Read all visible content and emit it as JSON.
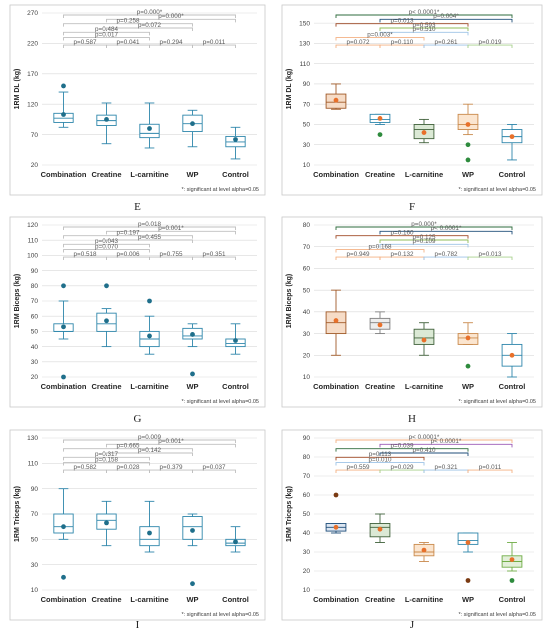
{
  "note": "*: significant at level alpha=0.05",
  "chart_data": [
    {
      "label": "E",
      "type": "box",
      "ylabel": "1RM DL (kg)",
      "ylim": [
        20,
        270
      ],
      "yticks": [
        20,
        70,
        120,
        170,
        220,
        270
      ],
      "categories": [
        "Combination",
        "Creatine",
        "L-carnitine",
        "WP",
        "Control"
      ],
      "boxes": [
        {
          "min": 82,
          "q1": 90,
          "median": 97,
          "q3": 105,
          "max": 140,
          "mean": 103,
          "outliers": [
            150
          ]
        },
        {
          "min": 55,
          "q1": 85,
          "median": 93,
          "q3": 102,
          "max": 122,
          "mean": 95,
          "outliers": []
        },
        {
          "min": 48,
          "q1": 65,
          "median": 72,
          "q3": 87,
          "max": 122,
          "mean": 80,
          "outliers": []
        },
        {
          "min": 50,
          "q1": 75,
          "median": 88,
          "q3": 102,
          "max": 110,
          "mean": 88,
          "outliers": []
        },
        {
          "min": 30,
          "q1": 50,
          "median": 58,
          "q3": 67,
          "max": 82,
          "mean": 62,
          "outliers": []
        }
      ],
      "comparisons": [
        {
          "a": 0,
          "b": 4,
          "text": "p=0.000*",
          "color": "#bfbfbf"
        },
        {
          "a": 1,
          "b": 4,
          "text": "p=0.000*",
          "color": "#bfbfbf"
        },
        {
          "a": 0,
          "b": 3,
          "text": "p=0.258",
          "color": "#bfbfbf"
        },
        {
          "a": 1,
          "b": 3,
          "text": "p=0.072",
          "color": "#bfbfbf"
        },
        {
          "a": 0,
          "b": 2,
          "text": "p=0.484",
          "color": "#bfbfbf"
        },
        {
          "a": 0,
          "b": 2,
          "text": "p=0.017",
          "color": "#bfbfbf"
        },
        {
          "a": 0,
          "b": 1,
          "text": "p=0.587",
          "color": "#bfbfbf"
        },
        {
          "a": 1,
          "b": 2,
          "text": "p=0.041",
          "color": "#bfbfbf"
        },
        {
          "a": 2,
          "b": 3,
          "text": "p=0.294",
          "color": "#bfbfbf"
        },
        {
          "a": 3,
          "b": 4,
          "text": "p=0.011",
          "color": "#bfbfbf"
        }
      ]
    },
    {
      "label": "F",
      "type": "box",
      "ylabel": "1RM DL (kg)",
      "ylim": [
        10,
        160
      ],
      "yticks": [
        10,
        30,
        50,
        70,
        90,
        110,
        130,
        150
      ],
      "categories": [
        "Combination",
        "Creatine",
        "L-carnitine",
        "WP",
        "Control"
      ],
      "boxes": [
        {
          "min": 65,
          "q1": 66,
          "median": 72,
          "q3": 80,
          "max": 90,
          "mean": 74,
          "outliers": [],
          "fill": "#f6dcc7",
          "stroke": "#a05a28",
          "meancolor": "#e8702a"
        },
        {
          "min": 50,
          "q1": 52,
          "median": 55,
          "q3": 60,
          "max": 60,
          "mean": 56,
          "outliers": [
            40
          ],
          "outliercolor": "#2e8b3d",
          "meancolor": "#e8702a"
        },
        {
          "min": 32,
          "q1": 36,
          "median": 45,
          "q3": 50,
          "max": 55,
          "mean": 42,
          "outliers": [],
          "fill": "#dbe9d5",
          "stroke": "#40613b",
          "meancolor": "#e8702a"
        },
        {
          "min": 40,
          "q1": 45,
          "median": 50,
          "q3": 60,
          "max": 70,
          "mean": 50,
          "outliers": [
            30,
            15
          ],
          "outliercolor": "#2e8b3d",
          "fill": "#fbe5cf",
          "stroke": "#c98a4d",
          "meancolor": "#e8702a"
        },
        {
          "min": 15,
          "q1": 32,
          "median": 38,
          "q3": 45,
          "max": 50,
          "mean": 38,
          "outliers": [],
          "meancolor": "#e8702a"
        }
      ],
      "comparisons": [
        {
          "a": 0,
          "b": 4,
          "text": "p< 0.0001*",
          "color": "#2e6b3c"
        },
        {
          "a": 1,
          "b": 4,
          "text": "p=0.004*",
          "color": "#1f4e79"
        },
        {
          "a": 0,
          "b": 3,
          "text": "p=0.013",
          "color": "#a04a26"
        },
        {
          "a": 1,
          "b": 3,
          "text": "p=0.593",
          "color": "#8fbc58"
        },
        {
          "a": 1,
          "b": 3,
          "text": "p=0.510",
          "color": "#9dc3e6"
        },
        {
          "a": 0,
          "b": 2,
          "text": "p=0.003*",
          "color": "#f4b183"
        },
        {
          "a": 0,
          "b": 1,
          "text": "p=0.072",
          "color": "#f4b183"
        },
        {
          "a": 1,
          "b": 2,
          "text": "p=0.110",
          "color": "#f4b183"
        },
        {
          "a": 2,
          "b": 3,
          "text": "p=0.261",
          "color": "#9dc3e6"
        },
        {
          "a": 3,
          "b": 4,
          "text": "p=0.019",
          "color": "#a9d18e"
        }
      ]
    },
    {
      "label": "G",
      "type": "box",
      "ylabel": "1RM Biceps (kg)",
      "ylim": [
        20,
        120
      ],
      "yticks": [
        20,
        30,
        40,
        50,
        60,
        70,
        80,
        90,
        100,
        110,
        120
      ],
      "categories": [
        "Combination",
        "Creatine",
        "L-carnitine",
        "WP",
        "Control"
      ],
      "boxes": [
        {
          "min": 45,
          "q1": 50,
          "median": 50,
          "q3": 55,
          "max": 70,
          "mean": 53,
          "outliers": [
            80,
            20
          ]
        },
        {
          "min": 40,
          "q1": 50,
          "median": 55,
          "q3": 62,
          "max": 65,
          "mean": 57,
          "outliers": [
            80
          ]
        },
        {
          "min": 35,
          "q1": 40,
          "median": 45,
          "q3": 50,
          "max": 60,
          "mean": 47,
          "outliers": [
            70
          ]
        },
        {
          "min": 40,
          "q1": 45,
          "median": 47,
          "q3": 52,
          "max": 55,
          "mean": 48,
          "outliers": [
            22
          ]
        },
        {
          "min": 35,
          "q1": 40,
          "median": 42,
          "q3": 45,
          "max": 55,
          "mean": 44,
          "outliers": []
        }
      ],
      "comparisons": [
        {
          "a": 0,
          "b": 4,
          "text": "p=0.018",
          "color": "#bfbfbf"
        },
        {
          "a": 1,
          "b": 4,
          "text": "p=0.001*",
          "color": "#bfbfbf"
        },
        {
          "a": 0,
          "b": 3,
          "text": "p=0.197",
          "color": "#bfbfbf"
        },
        {
          "a": 1,
          "b": 3,
          "text": "p=0.455",
          "color": "#bfbfbf"
        },
        {
          "a": 0,
          "b": 2,
          "text": "p=0.043",
          "color": "#bfbfbf"
        },
        {
          "a": 0,
          "b": 2,
          "text": "p=0.070",
          "color": "#bfbfbf"
        },
        {
          "a": 0,
          "b": 1,
          "text": "p=0.518",
          "color": "#bfbfbf"
        },
        {
          "a": 1,
          "b": 2,
          "text": "p=0.006",
          "color": "#bfbfbf"
        },
        {
          "a": 2,
          "b": 3,
          "text": "p=0.755",
          "color": "#bfbfbf"
        },
        {
          "a": 3,
          "b": 4,
          "text": "p=0.351",
          "color": "#bfbfbf"
        }
      ]
    },
    {
      "label": "H",
      "type": "box",
      "ylabel": "1RM Biceps (kg)",
      "ylim": [
        10,
        80
      ],
      "yticks": [
        10,
        20,
        30,
        40,
        50,
        60,
        70,
        80
      ],
      "categories": [
        "Combination",
        "Creatine",
        "L-carnitine",
        "WP",
        "Control"
      ],
      "boxes": [
        {
          "min": 20,
          "q1": 30,
          "median": 35,
          "q3": 40,
          "max": 50,
          "mean": 36,
          "outliers": [],
          "fill": "#f6dcc7",
          "stroke": "#a05a28",
          "meancolor": "#e8702a"
        },
        {
          "min": 30,
          "q1": 32,
          "median": 35,
          "q3": 37,
          "max": 40,
          "mean": 34,
          "outliers": [],
          "fill": "#ededed",
          "stroke": "#7f7f7f",
          "meancolor": "#e8702a"
        },
        {
          "min": 20,
          "q1": 25,
          "median": 28,
          "q3": 32,
          "max": 35,
          "mean": 27,
          "outliers": [],
          "fill": "#dbe9d5",
          "stroke": "#40613b",
          "meancolor": "#e8702a"
        },
        {
          "min": 25,
          "q1": 25,
          "median": 28,
          "q3": 30,
          "max": 35,
          "mean": 28,
          "outliers": [
            15
          ],
          "outliercolor": "#2e8b3d",
          "fill": "#fbe5cf",
          "stroke": "#c98a4d",
          "meancolor": "#e8702a"
        },
        {
          "min": 10,
          "q1": 15,
          "median": 20,
          "q3": 25,
          "max": 30,
          "mean": 20,
          "outliers": [],
          "meancolor": "#e8702a"
        }
      ],
      "comparisons": [
        {
          "a": 0,
          "b": 4,
          "text": "p=0.000*",
          "color": "#2e6b3c"
        },
        {
          "a": 1,
          "b": 4,
          "text": "p< 0.0001*",
          "color": "#1f4e79"
        },
        {
          "a": 0,
          "b": 3,
          "text": "p=0.160",
          "color": "#a04a26"
        },
        {
          "a": 1,
          "b": 3,
          "text": "p=0.125",
          "color": "#8fbc58"
        },
        {
          "a": 1,
          "b": 3,
          "text": "p=0.109",
          "color": "#9dc3e6"
        },
        {
          "a": 0,
          "b": 2,
          "text": "p=0.168",
          "color": "#f4b183"
        },
        {
          "a": 0,
          "b": 1,
          "text": "p=0.949",
          "color": "#f4b183"
        },
        {
          "a": 1,
          "b": 2,
          "text": "p=0.132",
          "color": "#f4b183"
        },
        {
          "a": 2,
          "b": 3,
          "text": "p=0.782",
          "color": "#9dc3e6"
        },
        {
          "a": 3,
          "b": 4,
          "text": "p=0.013",
          "color": "#a9d18e"
        }
      ]
    },
    {
      "label": "I",
      "type": "box",
      "ylabel": "1RM Triceps (kg)",
      "ylim": [
        10,
        130
      ],
      "yticks": [
        10,
        30,
        50,
        70,
        90,
        110,
        130
      ],
      "categories": [
        "Combination",
        "Creatine",
        "L-carnitine",
        "WP",
        "Control"
      ],
      "boxes": [
        {
          "min": 50,
          "q1": 55,
          "median": 60,
          "q3": 70,
          "max": 90,
          "mean": 60,
          "outliers": [
            20
          ]
        },
        {
          "min": 45,
          "q1": 58,
          "median": 65,
          "q3": 70,
          "max": 80,
          "mean": 63,
          "outliers": []
        },
        {
          "min": 40,
          "q1": 45,
          "median": 50,
          "q3": 60,
          "max": 80,
          "mean": 55,
          "outliers": []
        },
        {
          "min": 45,
          "q1": 50,
          "median": 60,
          "q3": 68,
          "max": 70,
          "mean": 57,
          "outliers": [
            15
          ]
        },
        {
          "min": 40,
          "q1": 45,
          "median": 47,
          "q3": 50,
          "max": 60,
          "mean": 48,
          "outliers": []
        }
      ],
      "comparisons": [
        {
          "a": 0,
          "b": 4,
          "text": "p=0.009",
          "color": "#bfbfbf"
        },
        {
          "a": 1,
          "b": 4,
          "text": "p=0.001*",
          "color": "#bfbfbf"
        },
        {
          "a": 0,
          "b": 3,
          "text": "p=0.665",
          "color": "#bfbfbf"
        },
        {
          "a": 1,
          "b": 3,
          "text": "p=0.142",
          "color": "#bfbfbf"
        },
        {
          "a": 0,
          "b": 2,
          "text": "p=0.317",
          "color": "#bfbfbf"
        },
        {
          "a": 0,
          "b": 2,
          "text": "p=0.158",
          "color": "#bfbfbf"
        },
        {
          "a": 0,
          "b": 1,
          "text": "p=0.582",
          "color": "#bfbfbf"
        },
        {
          "a": 1,
          "b": 2,
          "text": "p=0.028",
          "color": "#bfbfbf"
        },
        {
          "a": 2,
          "b": 3,
          "text": "p=0.379",
          "color": "#bfbfbf"
        },
        {
          "a": 3,
          "b": 4,
          "text": "p=0.037",
          "color": "#bfbfbf"
        }
      ]
    },
    {
      "label": "J",
      "type": "box",
      "ylabel": "1RM Triceps (kg)",
      "ylim": [
        10,
        90
      ],
      "yticks": [
        10,
        20,
        30,
        40,
        50,
        60,
        70,
        80,
        90
      ],
      "categories": [
        "Combination",
        "Creatine",
        "L-carnitine",
        "WP",
        "Control"
      ],
      "boxes": [
        {
          "min": 40,
          "q1": 41,
          "median": 43,
          "q3": 45,
          "max": 45,
          "mean": 43,
          "outliers": [
            60
          ],
          "outliercolor": "#7a3a12",
          "fill": "#dce6f2",
          "stroke": "#1f4e79",
          "meancolor": "#e8702a"
        },
        {
          "min": 35,
          "q1": 38,
          "median": 43,
          "q3": 45,
          "max": 50,
          "mean": 42,
          "outliers": [],
          "fill": "#dbe9d5",
          "stroke": "#40613b",
          "meancolor": "#e8702a"
        },
        {
          "min": 25,
          "q1": 28,
          "median": 30,
          "q3": 34,
          "max": 35,
          "mean": 31,
          "outliers": [],
          "fill": "#fbe5cf",
          "stroke": "#c98a4d",
          "meancolor": "#e8702a"
        },
        {
          "min": 30,
          "q1": 34,
          "median": 36,
          "q3": 40,
          "max": 40,
          "mean": 35,
          "outliers": [
            15
          ],
          "outliercolor": "#7a3a12",
          "meancolor": "#e8702a"
        },
        {
          "min": 20,
          "q1": 22,
          "median": 25,
          "q3": 28,
          "max": 35,
          "mean": 26,
          "outliers": [
            15
          ],
          "outliercolor": "#2e8b3d",
          "fill": "#e2efd9",
          "stroke": "#70ad47",
          "meancolor": "#e8702a"
        }
      ],
      "comparisons": [
        {
          "a": 0,
          "b": 4,
          "text": "p< 0.0001*",
          "color": "#f4b183"
        },
        {
          "a": 1,
          "b": 4,
          "text": "p< 0.0001*",
          "color": "#9b59b6"
        },
        {
          "a": 0,
          "b": 3,
          "text": "p=0.039",
          "color": "#2e6b3c"
        },
        {
          "a": 1,
          "b": 3,
          "text": "p=0.410",
          "color": "#1f4e79"
        },
        {
          "a": 0,
          "b": 2,
          "text": "p=0.113",
          "color": "#a04a26"
        },
        {
          "a": 0,
          "b": 2,
          "text": "p=0.010",
          "color": "#9dc3e6"
        },
        {
          "a": 0,
          "b": 1,
          "text": "p=0.559",
          "color": "#f4b183"
        },
        {
          "a": 1,
          "b": 2,
          "text": "p=0.029",
          "color": "#a9d18e"
        },
        {
          "a": 2,
          "b": 3,
          "text": "p=0.321",
          "color": "#9dc3e6"
        },
        {
          "a": 3,
          "b": 4,
          "text": "p=0.011",
          "color": "#f4b183"
        }
      ]
    }
  ]
}
